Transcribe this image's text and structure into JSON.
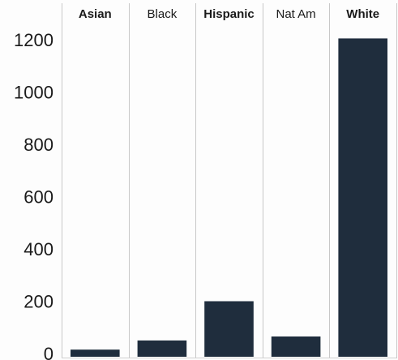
{
  "chart_data": {
    "type": "bar",
    "categories": [
      "Asian",
      "Black",
      "Hispanic",
      "Nat Am",
      "White"
    ],
    "category_bold": [
      true,
      false,
      true,
      false,
      true
    ],
    "values": [
      15,
      50,
      200,
      65,
      1205
    ],
    "ylim": [
      0,
      1300
    ],
    "yticks": [
      0,
      200,
      400,
      600,
      800,
      1000,
      1200
    ],
    "title": "",
    "xlabel": "",
    "ylabel": "",
    "bar_color": "#1f2d3d",
    "grid": false,
    "category_labels_position": "top"
  }
}
